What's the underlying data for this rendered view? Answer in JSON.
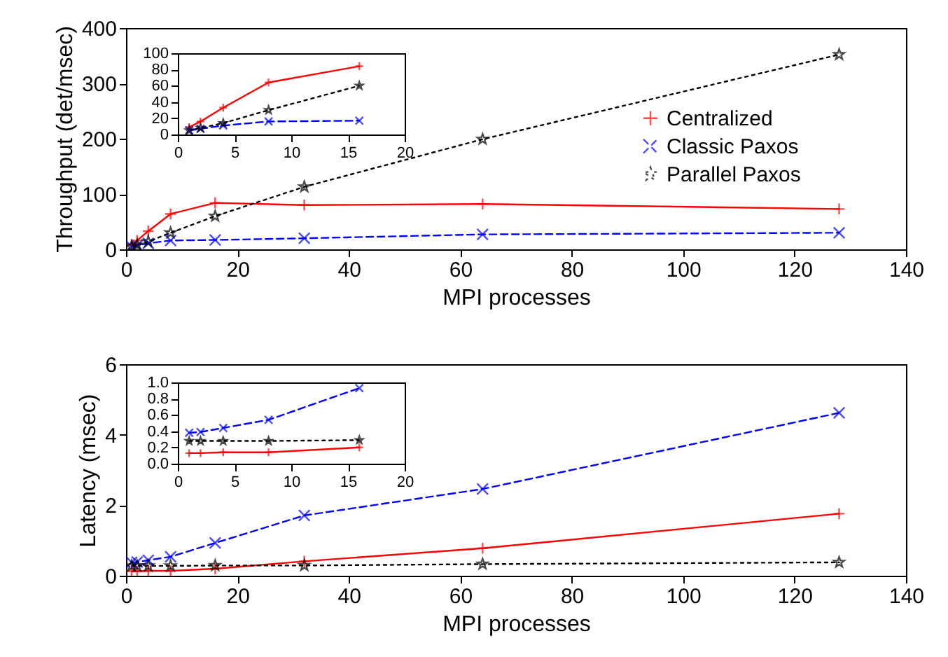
{
  "chart_data": [
    {
      "type": "line",
      "xlabel": "MPI processes",
      "ylabel": "Throughput (det/msec)",
      "x": [
        1,
        2,
        4,
        8,
        16,
        32,
        64,
        128
      ],
      "xlim": [
        0,
        140
      ],
      "xticks": [
        0,
        20,
        40,
        60,
        80,
        100,
        120,
        140
      ],
      "ylim": [
        0,
        400
      ],
      "yticks": [
        0,
        100,
        200,
        300,
        400
      ],
      "legend": "right",
      "series": [
        {
          "name": "Centralized",
          "color": "#ff0000",
          "marker": "plus",
          "line_style": "solid",
          "values": [
            9,
            16,
            33,
            64,
            84,
            80,
            82,
            73
          ]
        },
        {
          "name": "Classic Paxos",
          "color": "#0000ff",
          "marker": "cross",
          "line_style": "dashed",
          "values": [
            5,
            7,
            11,
            16,
            17,
            20,
            27,
            30
          ]
        },
        {
          "name": "Parallel Paxos",
          "color": "#000000",
          "marker": "star",
          "line_style": "dotted",
          "values": [
            5,
            8,
            14,
            30,
            60,
            113,
            199,
            352
          ]
        }
      ]
    },
    {
      "type": "line",
      "x": [
        1,
        2,
        4,
        8,
        16
      ],
      "xlim": [
        0,
        20
      ],
      "xticks": [
        0,
        5,
        10,
        15,
        20
      ],
      "ylim": [
        0,
        100
      ],
      "yticks": [
        0,
        20,
        40,
        60,
        80,
        100
      ],
      "series": [
        {
          "color": "#ff0000",
          "marker": "plus",
          "line_style": "solid",
          "values": [
            9,
            16,
            33,
            64,
            84
          ]
        },
        {
          "color": "#0000ff",
          "marker": "cross",
          "line_style": "dashed",
          "values": [
            5,
            7,
            11,
            16,
            17
          ]
        },
        {
          "color": "#000000",
          "marker": "star",
          "line_style": "dotted",
          "values": [
            5,
            8,
            14,
            30,
            60
          ]
        }
      ]
    },
    {
      "type": "line",
      "xlabel": "MPI processes",
      "ylabel": "Latency (msec)",
      "x": [
        1,
        2,
        4,
        8,
        16,
        32,
        64,
        128
      ],
      "xlim": [
        0,
        140
      ],
      "xticks": [
        0,
        20,
        40,
        60,
        80,
        100,
        120,
        140
      ],
      "ylim": [
        0,
        6
      ],
      "yticks": [
        0,
        2,
        4,
        6
      ],
      "series": [
        {
          "color": "#ff0000",
          "marker": "plus",
          "line_style": "solid",
          "values": [
            0.13,
            0.13,
            0.14,
            0.14,
            0.2,
            0.41,
            0.78,
            1.76
          ]
        },
        {
          "color": "#0000ff",
          "marker": "cross",
          "line_style": "dashed",
          "values": [
            0.38,
            0.39,
            0.44,
            0.54,
            0.93,
            1.71,
            2.46,
            4.62
          ]
        },
        {
          "color": "#000000",
          "marker": "star",
          "line_style": "dotted",
          "values": [
            0.28,
            0.28,
            0.28,
            0.28,
            0.29,
            0.29,
            0.33,
            0.38
          ]
        }
      ]
    },
    {
      "type": "line",
      "x": [
        1,
        2,
        4,
        8,
        16
      ],
      "xlim": [
        0,
        20
      ],
      "xticks": [
        0,
        5,
        10,
        15,
        20
      ],
      "ylim": [
        0,
        1
      ],
      "yticks": [
        {
          "value": 0,
          "label": "0.0"
        },
        0.2,
        0.4,
        0.6,
        0.8,
        {
          "value": 1,
          "label": "1.0"
        }
      ],
      "series": [
        {
          "color": "#ff0000",
          "marker": "plus",
          "line_style": "solid",
          "values": [
            0.13,
            0.13,
            0.14,
            0.14,
            0.2
          ]
        },
        {
          "color": "#0000ff",
          "marker": "cross",
          "line_style": "dashed",
          "values": [
            0.38,
            0.39,
            0.44,
            0.54,
            0.93
          ]
        },
        {
          "color": "#000000",
          "marker": "star",
          "line_style": "dotted",
          "values": [
            0.28,
            0.28,
            0.28,
            0.28,
            0.29
          ]
        }
      ]
    }
  ]
}
